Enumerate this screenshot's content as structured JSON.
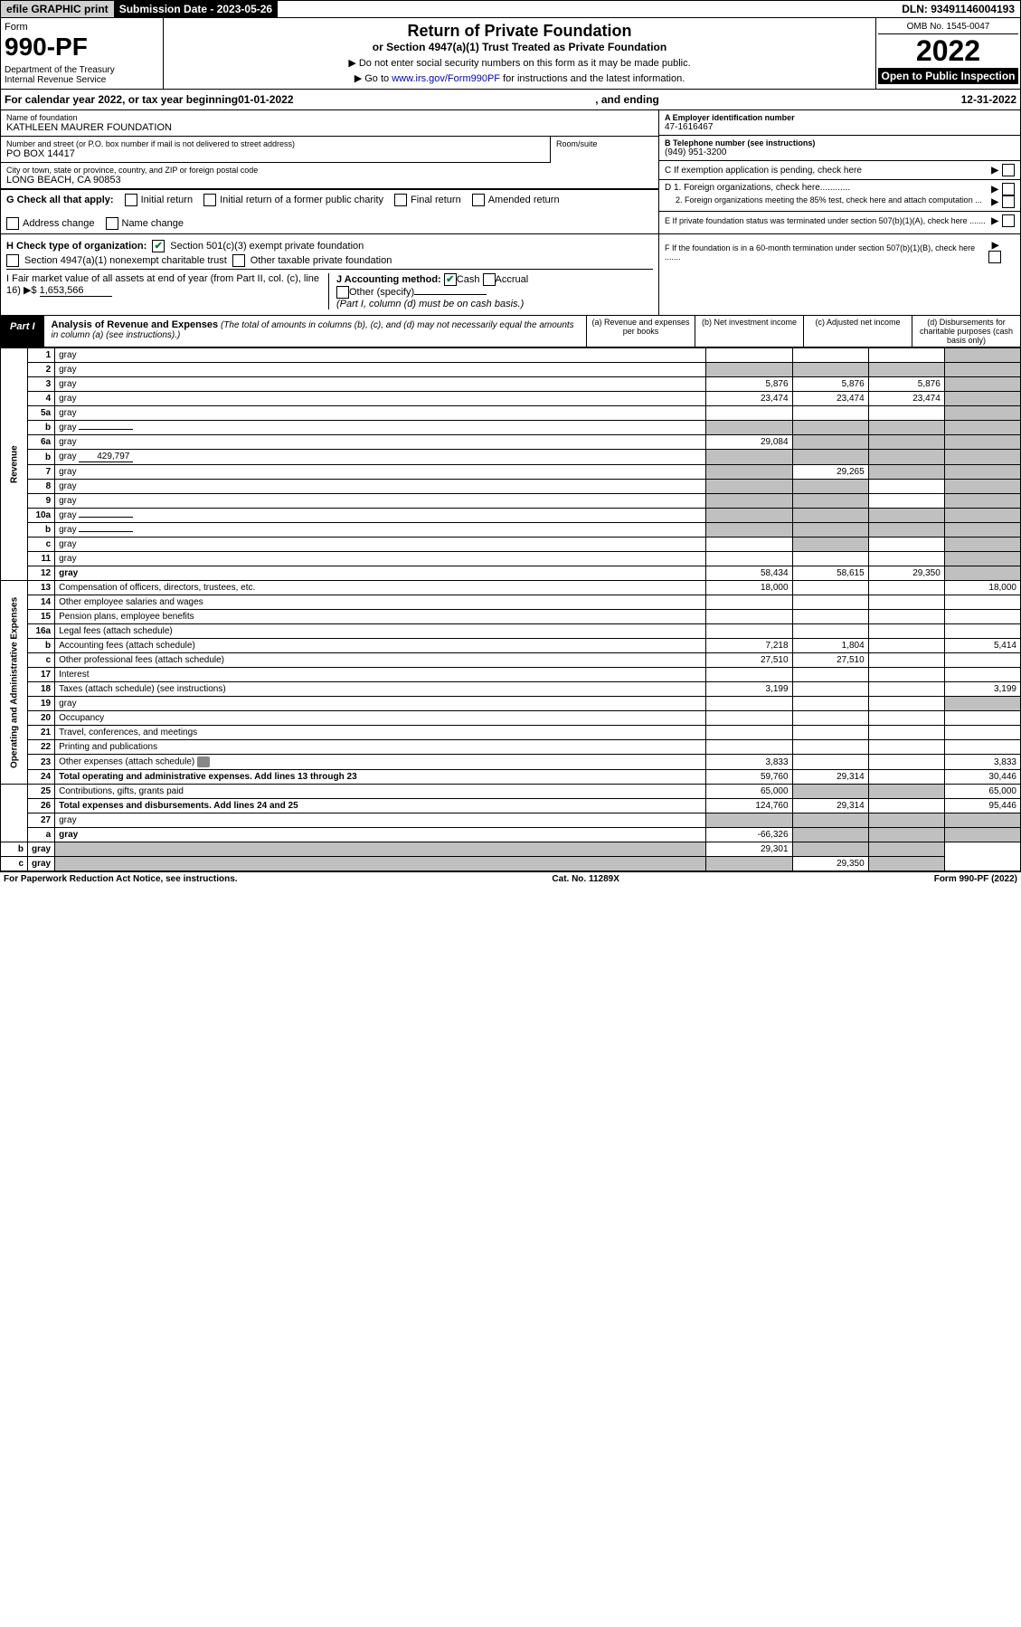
{
  "topbar": {
    "efile": "efile GRAPHIC print",
    "subdate_label": "Submission Date - 2023-05-26",
    "dln": "DLN: 93491146004193"
  },
  "header": {
    "form_label": "Form",
    "form_no": "990-PF",
    "dept": "Department of the Treasury\nInternal Revenue Service",
    "title": "Return of Private Foundation",
    "subtitle": "or Section 4947(a)(1) Trust Treated as Private Foundation",
    "note1": "▶ Do not enter social security numbers on this form as it may be made public.",
    "note2": "▶ Go to www.irs.gov/Form990PF for instructions and the latest information.",
    "link": "www.irs.gov/Form990PF",
    "omb": "OMB No. 1545-0047",
    "year": "2022",
    "open": "Open to Public Inspection"
  },
  "calrow": {
    "prefix": "For calendar year 2022, or tax year beginning ",
    "begin": "01-01-2022",
    "mid": ", and ending ",
    "end": "12-31-2022"
  },
  "info": {
    "name_lbl": "Name of foundation",
    "name": "KATHLEEN MAURER FOUNDATION",
    "addr_lbl": "Number and street (or P.O. box number if mail is not delivered to street address)",
    "addr": "PO BOX 14417",
    "room_lbl": "Room/suite",
    "city_lbl": "City or town, state or province, country, and ZIP or foreign postal code",
    "city": "LONG BEACH, CA  90853",
    "ein_lbl": "A Employer identification number",
    "ein": "47-1616467",
    "tel_lbl": "B Telephone number (see instructions)",
    "tel": "(949) 951-3200",
    "c_lbl": "C If exemption application is pending, check here",
    "d1_lbl": "D 1. Foreign organizations, check here............",
    "d2_lbl": "2. Foreign organizations meeting the 85% test, check here and attach computation ...",
    "e_lbl": "E  If private foundation status was terminated under section 507(b)(1)(A), check here .......",
    "f_lbl": "F  If the foundation is in a 60-month termination under section 507(b)(1)(B), check here .......",
    "g_lbl": "G Check all that apply:",
    "g_opts": [
      "Initial return",
      "Initial return of a former public charity",
      "Final return",
      "Amended return",
      "Address change",
      "Name change"
    ],
    "h_lbl": "H Check type of organization:",
    "h_501c3": "Section 501(c)(3) exempt private foundation",
    "h_4947": "Section 4947(a)(1) nonexempt charitable trust",
    "h_other": "Other taxable private foundation",
    "i_lbl": "I Fair market value of all assets at end of year (from Part II, col. (c), line 16) ▶$",
    "i_val": "1,653,566",
    "j_lbl": "J Accounting method:",
    "j_cash": "Cash",
    "j_accrual": "Accrual",
    "j_other": "Other (specify)",
    "j_note": "(Part I, column (d) must be on cash basis.)"
  },
  "part1": {
    "label": "Part I",
    "title": "Analysis of Revenue and Expenses",
    "note": "(The total of amounts in columns (b), (c), and (d) may not necessarily equal the amounts in column (a) (see instructions).)",
    "cols": {
      "a": "(a) Revenue and expenses per books",
      "b": "(b) Net investment income",
      "c": "(c) Adjusted net income",
      "d": "(d) Disbursements for charitable purposes (cash basis only)"
    },
    "vlabels": {
      "rev": "Revenue",
      "exp": "Operating and Administrative Expenses"
    },
    "rows": [
      {
        "n": "1",
        "d": "gray",
        "a": "",
        "b": "",
        "c": ""
      },
      {
        "n": "2",
        "d": "gray",
        "nodots": true,
        "a": "gray",
        "b": "gray",
        "c": "gray"
      },
      {
        "n": "3",
        "d": "gray",
        "a": "5,876",
        "b": "5,876",
        "c": "5,876"
      },
      {
        "n": "4",
        "d": "gray",
        "a": "23,474",
        "b": "23,474",
        "c": "23,474"
      },
      {
        "n": "5a",
        "d": "gray",
        "a": "",
        "b": "",
        "c": ""
      },
      {
        "n": "b",
        "d": "gray",
        "inline": "",
        "a": "gray",
        "b": "gray",
        "c": "gray"
      },
      {
        "n": "6a",
        "d": "gray",
        "a": "29,084",
        "b": "gray",
        "c": "gray"
      },
      {
        "n": "b",
        "d": "gray",
        "inline": "429,797",
        "a": "gray",
        "b": "gray",
        "c": "gray"
      },
      {
        "n": "7",
        "d": "gray",
        "a": "gray",
        "b": "29,265",
        "c": "gray"
      },
      {
        "n": "8",
        "d": "gray",
        "a": "gray",
        "b": "gray",
        "c": ""
      },
      {
        "n": "9",
        "d": "gray",
        "a": "gray",
        "b": "gray",
        "c": ""
      },
      {
        "n": "10a",
        "d": "gray",
        "inline": "",
        "a": "gray",
        "b": "gray",
        "c": "gray"
      },
      {
        "n": "b",
        "d": "gray",
        "inline": "",
        "a": "gray",
        "b": "gray",
        "c": "gray"
      },
      {
        "n": "c",
        "d": "gray",
        "a": "",
        "b": "gray",
        "c": ""
      },
      {
        "n": "11",
        "d": "gray",
        "a": "",
        "b": "",
        "c": ""
      },
      {
        "n": "12",
        "d": "gray",
        "bold": true,
        "a": "58,434",
        "b": "58,615",
        "c": "29,350"
      },
      {
        "n": "13",
        "d": "Compensation of officers, directors, trustees, etc.",
        "a": "18,000",
        "b": "",
        "c": "",
        "dv": "18,000"
      },
      {
        "n": "14",
        "d": "Other employee salaries and wages",
        "a": "",
        "b": "",
        "c": "",
        "dv": ""
      },
      {
        "n": "15",
        "d": "Pension plans, employee benefits",
        "a": "",
        "b": "",
        "c": "",
        "dv": ""
      },
      {
        "n": "16a",
        "d": "Legal fees (attach schedule)",
        "a": "",
        "b": "",
        "c": "",
        "dv": ""
      },
      {
        "n": "b",
        "d": "Accounting fees (attach schedule)",
        "a": "7,218",
        "b": "1,804",
        "c": "",
        "dv": "5,414"
      },
      {
        "n": "c",
        "d": "Other professional fees (attach schedule)",
        "a": "27,510",
        "b": "27,510",
        "c": "",
        "dv": ""
      },
      {
        "n": "17",
        "d": "Interest",
        "a": "",
        "b": "",
        "c": "",
        "dv": ""
      },
      {
        "n": "18",
        "d": "Taxes (attach schedule) (see instructions)",
        "a": "3,199",
        "b": "",
        "c": "",
        "dv": "3,199"
      },
      {
        "n": "19",
        "d": "gray",
        "a": "",
        "b": "",
        "c": ""
      },
      {
        "n": "20",
        "d": "Occupancy",
        "a": "",
        "b": "",
        "c": "",
        "dv": ""
      },
      {
        "n": "21",
        "d": "Travel, conferences, and meetings",
        "a": "",
        "b": "",
        "c": "",
        "dv": ""
      },
      {
        "n": "22",
        "d": "Printing and publications",
        "a": "",
        "b": "",
        "c": "",
        "dv": ""
      },
      {
        "n": "23",
        "d": "Other expenses (attach schedule)",
        "attach": true,
        "a": "3,833",
        "b": "",
        "c": "",
        "dv": "3,833"
      },
      {
        "n": "24",
        "d": "Total operating and administrative expenses. Add lines 13 through 23",
        "bold": true,
        "a": "59,760",
        "b": "29,314",
        "c": "",
        "dv": "30,446"
      },
      {
        "n": "25",
        "d": "Contributions, gifts, grants paid",
        "a": "65,000",
        "b": "gray",
        "c": "gray",
        "dv": "65,000"
      },
      {
        "n": "26",
        "d": "Total expenses and disbursements. Add lines 24 and 25",
        "bold": true,
        "a": "124,760",
        "b": "29,314",
        "c": "",
        "dv": "95,446"
      },
      {
        "n": "27",
        "d": "gray",
        "a": "gray",
        "b": "gray",
        "c": "gray"
      },
      {
        "n": "a",
        "d": "gray",
        "bold": true,
        "a": "-66,326",
        "b": "gray",
        "c": "gray"
      },
      {
        "n": "b",
        "d": "gray",
        "bold": true,
        "a": "gray",
        "b": "29,301",
        "c": "gray"
      },
      {
        "n": "c",
        "d": "gray",
        "bold": true,
        "a": "gray",
        "b": "gray",
        "c": "29,350"
      }
    ]
  },
  "footer": {
    "left": "For Paperwork Reduction Act Notice, see instructions.",
    "mid": "Cat. No. 11289X",
    "right": "Form 990-PF (2022)"
  }
}
